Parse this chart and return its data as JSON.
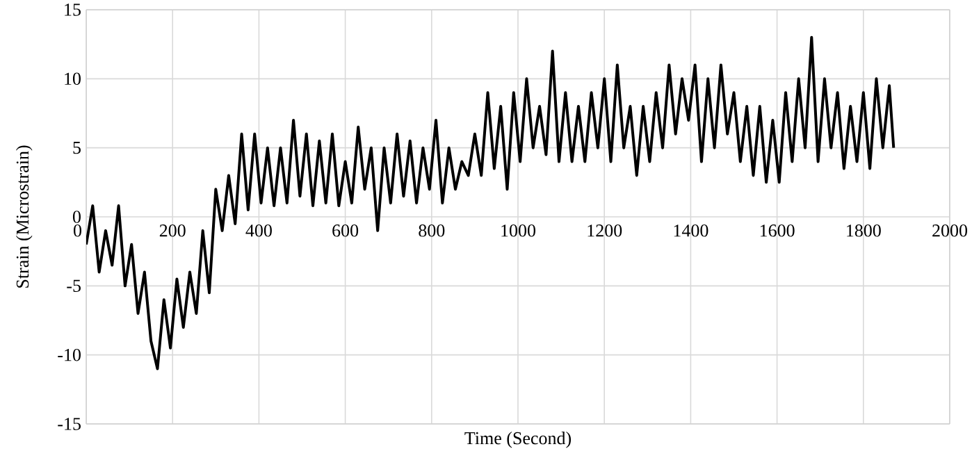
{
  "chart_data": {
    "type": "line",
    "xlabel": "Time (Second)",
    "ylabel": "Strain (Microstrain)",
    "xlim": [
      0,
      2000
    ],
    "ylim": [
      -15,
      15
    ],
    "xticks": [
      0,
      200,
      400,
      600,
      800,
      1000,
      1200,
      1400,
      1600,
      1800,
      2000
    ],
    "yticks": [
      -15,
      -10,
      -5,
      0,
      5,
      10,
      15
    ],
    "grid": true,
    "marker": "none",
    "line_style": "solid",
    "series": [
      {
        "color": "#000000",
        "x": [
          0,
          15,
          30,
          45,
          60,
          75,
          90,
          105,
          120,
          135,
          150,
          165,
          180,
          195,
          210,
          225,
          240,
          255,
          270,
          285,
          300,
          315,
          330,
          345,
          360,
          375,
          390,
          405,
          420,
          435,
          450,
          465,
          480,
          495,
          510,
          525,
          540,
          555,
          570,
          585,
          600,
          615,
          630,
          645,
          660,
          675,
          690,
          705,
          720,
          735,
          750,
          765,
          780,
          795,
          810,
          825,
          840,
          855,
          870,
          885,
          900,
          915,
          930,
          945,
          960,
          975,
          990,
          1005,
          1020,
          1035,
          1050,
          1065,
          1080,
          1095,
          1110,
          1125,
          1140,
          1155,
          1170,
          1185,
          1200,
          1215,
          1230,
          1245,
          1260,
          1275,
          1290,
          1305,
          1320,
          1335,
          1350,
          1365,
          1380,
          1395,
          1410,
          1425,
          1440,
          1455,
          1470,
          1485,
          1500,
          1515,
          1530,
          1545,
          1560,
          1575,
          1590,
          1605,
          1620,
          1635,
          1650,
          1665,
          1680,
          1695,
          1710,
          1725,
          1740,
          1755,
          1770,
          1785,
          1800,
          1815,
          1830,
          1845,
          1860,
          1870
        ],
        "values": [
          -2,
          0.8,
          -4,
          -1,
          -3.5,
          0.8,
          -5,
          -2,
          -7,
          -4,
          -9,
          -11,
          -6,
          -9.5,
          -4.5,
          -8,
          -4,
          -7,
          -1,
          -5.5,
          2,
          -1,
          3,
          -0.5,
          6,
          0.5,
          6,
          1,
          5,
          0.8,
          5,
          1,
          7,
          1.5,
          6,
          0.8,
          5.5,
          1,
          6,
          0.8,
          4,
          1,
          6.5,
          2,
          5,
          -1,
          5,
          1,
          6,
          1.5,
          5.5,
          1,
          5,
          2,
          7,
          1,
          5,
          2,
          4,
          3,
          6,
          3,
          9,
          3.5,
          8,
          2,
          9,
          4,
          10,
          5,
          8,
          4.5,
          12,
          4,
          9,
          4,
          8,
          4,
          9,
          5,
          10,
          4,
          11,
          5,
          8,
          3,
          8,
          4,
          9,
          5,
          11,
          6,
          10,
          7,
          11,
          4,
          10,
          5,
          11,
          6,
          9,
          4,
          8,
          3,
          8,
          2.5,
          7,
          2.5,
          9,
          4,
          10,
          5,
          13,
          4,
          10,
          5,
          9,
          3.5,
          8,
          4,
          9,
          3.5,
          10,
          5,
          9.5,
          5
        ]
      }
    ]
  }
}
